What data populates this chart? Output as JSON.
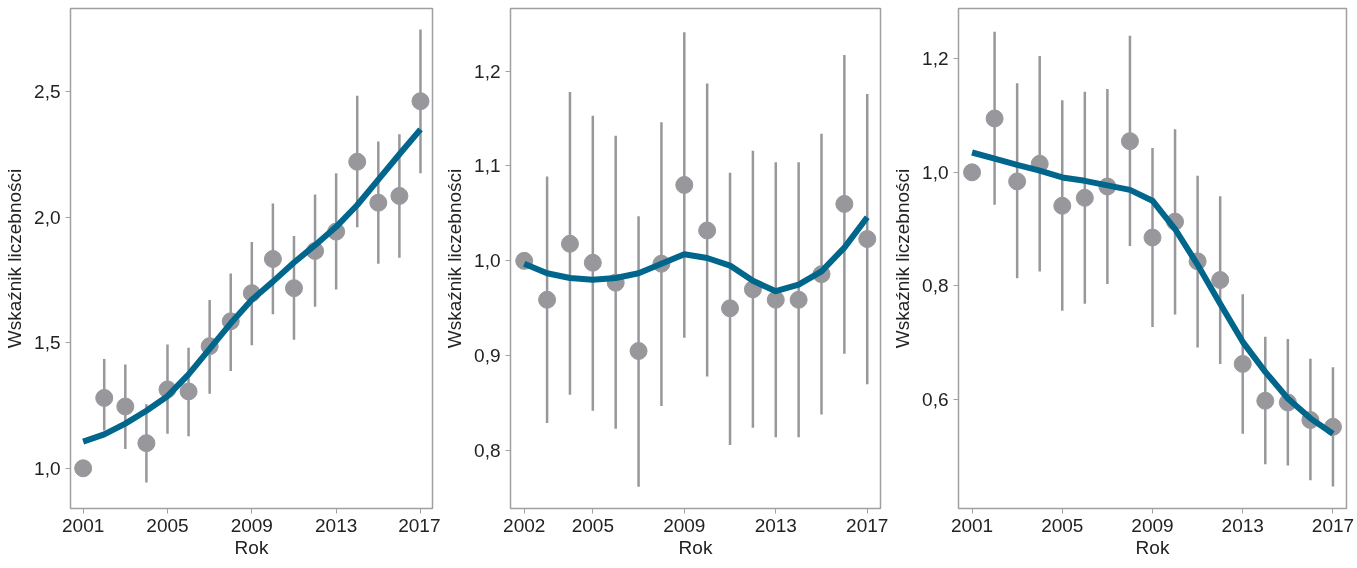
{
  "chart_data": [
    {
      "type": "scatter",
      "xlabel": "Rok",
      "ylabel": "Wskaźnik liczebności",
      "grid": false,
      "x": [
        2001,
        2002,
        2003,
        2004,
        2005,
        2006,
        2007,
        2008,
        2009,
        2010,
        2011,
        2012,
        2013,
        2014,
        2015,
        2016,
        2017
      ],
      "xlim": [
        2000.4,
        2017.57
      ],
      "xticks": [
        2001,
        2005,
        2009,
        2013,
        2017
      ],
      "ylim": [
        0.84,
        2.83
      ],
      "yticks": [
        {
          "value": 1.0,
          "label": "1,0"
        },
        {
          "value": 1.5,
          "label": "1,5"
        },
        {
          "value": 2.0,
          "label": "2,0"
        },
        {
          "value": 2.5,
          "label": "2,5"
        }
      ],
      "series": [
        {
          "color": "#98989c",
          "marker": "circle",
          "values": [
            1.0,
            1.28,
            1.246,
            1.1,
            1.314,
            1.306,
            1.486,
            1.585,
            1.697,
            1.833,
            1.717,
            1.865,
            1.942,
            2.22,
            2.057,
            2.084,
            2.461
          ],
          "errors": [
            null,
            [
              1.15,
              1.435
            ],
            [
              1.077,
              1.413
            ],
            [
              0.943,
              1.255
            ],
            [
              1.138,
              1.493
            ],
            [
              1.128,
              1.48
            ],
            [
              1.297,
              1.67
            ],
            [
              1.387,
              1.775
            ],
            [
              1.49,
              1.901
            ],
            [
              1.613,
              2.054
            ],
            [
              1.512,
              1.925
            ],
            [
              1.643,
              2.09
            ],
            [
              1.712,
              2.174
            ],
            [
              1.959,
              2.483
            ],
            [
              1.814,
              2.301
            ],
            [
              1.838,
              2.33
            ],
            [
              2.174,
              2.746
            ]
          ]
        },
        {
          "type": "line",
          "color": "#00668c",
          "values": [
            1.106,
            1.135,
            1.178,
            1.229,
            1.287,
            1.374,
            1.475,
            1.577,
            1.671,
            1.743,
            1.819,
            1.888,
            1.961,
            2.048,
            2.149,
            2.25,
            2.349
          ]
        }
      ]
    },
    {
      "type": "scatter",
      "xlabel": "Rok",
      "ylabel": "Wskaźnik liczebności",
      "grid": false,
      "x": [
        2002,
        2003,
        2004,
        2005,
        2006,
        2007,
        2008,
        2009,
        2010,
        2011,
        2012,
        2013,
        2014,
        2015,
        2016,
        2017
      ],
      "xlim": [
        2001.4,
        2017.58
      ],
      "xticks": [
        2002,
        2005,
        2009,
        2013,
        2017
      ],
      "ylim": [
        0.739,
        1.266
      ],
      "yticks": [
        {
          "value": 0.8,
          "label": "0,8"
        },
        {
          "value": 0.9,
          "label": "0,9"
        },
        {
          "value": 1.0,
          "label": "1,0"
        },
        {
          "value": 1.1,
          "label": "1,1"
        },
        {
          "value": 1.2,
          "label": "1,2"
        }
      ],
      "series": [
        {
          "color": "#98989c",
          "marker": "circle",
          "values": [
            1.0,
            0.959,
            1.018,
            0.998,
            0.977,
            0.905,
            0.997,
            1.08,
            1.032,
            0.95,
            0.97,
            0.959,
            0.959,
            0.986,
            1.06,
            1.023
          ],
          "errors": [
            null,
            [
              0.829,
              1.089
            ],
            [
              0.859,
              1.178
            ],
            [
              0.842,
              1.153
            ],
            [
              0.823,
              1.132
            ],
            [
              0.762,
              1.047
            ],
            [
              0.847,
              1.146
            ],
            [
              0.919,
              1.241
            ],
            [
              0.878,
              1.187
            ],
            [
              0.806,
              1.093
            ],
            [
              0.824,
              1.116
            ],
            [
              0.814,
              1.104
            ],
            [
              0.814,
              1.104
            ],
            [
              0.838,
              1.134
            ],
            [
              0.902,
              1.217
            ],
            [
              0.87,
              1.176
            ]
          ]
        },
        {
          "type": "line",
          "color": "#00668c",
          "values": [
            0.997,
            0.987,
            0.982,
            0.98,
            0.982,
            0.987,
            0.997,
            1.007,
            1.003,
            0.995,
            0.979,
            0.968,
            0.975,
            0.989,
            1.014,
            1.046
          ]
        }
      ]
    },
    {
      "type": "scatter",
      "xlabel": "Rok",
      "ylabel": "Wskaźnik liczebności",
      "grid": false,
      "x": [
        2001,
        2002,
        2003,
        2004,
        2005,
        2006,
        2007,
        2008,
        2009,
        2010,
        2011,
        2012,
        2013,
        2014,
        2015,
        2016,
        2017
      ],
      "xlim": [
        2000.4,
        2017.6
      ],
      "xticks": [
        2001,
        2005,
        2009,
        2013,
        2017
      ],
      "ylim": [
        0.407,
        1.289
      ],
      "yticks": [
        {
          "value": 0.6,
          "label": "0,6"
        },
        {
          "value": 0.8,
          "label": "0,8"
        },
        {
          "value": 1.0,
          "label": "1,0"
        },
        {
          "value": 1.2,
          "label": "1,2"
        }
      ],
      "series": [
        {
          "color": "#98989c",
          "marker": "circle",
          "values": [
            1.0,
            1.095,
            0.984,
            1.015,
            0.941,
            0.955,
            0.975,
            1.055,
            0.885,
            0.913,
            0.843,
            0.81,
            0.662,
            0.597,
            0.594,
            0.563,
            0.551
          ],
          "errors": [
            null,
            [
              0.943,
              1.248
            ],
            [
              0.813,
              1.157
            ],
            [
              0.825,
              1.205
            ],
            [
              0.756,
              1.127
            ],
            [
              0.768,
              1.142
            ],
            [
              0.803,
              1.147
            ],
            [
              0.87,
              1.241
            ],
            [
              0.727,
              1.043
            ],
            [
              0.749,
              1.076
            ],
            [
              0.691,
              0.994
            ],
            [
              0.662,
              0.958
            ],
            [
              0.539,
              0.785
            ],
            [
              0.485,
              0.71
            ],
            [
              0.483,
              0.706
            ],
            [
              0.457,
              0.671
            ],
            [
              0.446,
              0.656
            ]
          ]
        },
        {
          "type": "line",
          "color": "#00668c",
          "values": [
            1.035,
            1.024,
            1.013,
            1.003,
            0.991,
            0.985,
            0.977,
            0.969,
            0.95,
            0.9,
            0.837,
            0.768,
            0.701,
            0.648,
            0.601,
            0.566,
            0.539
          ]
        }
      ]
    }
  ]
}
